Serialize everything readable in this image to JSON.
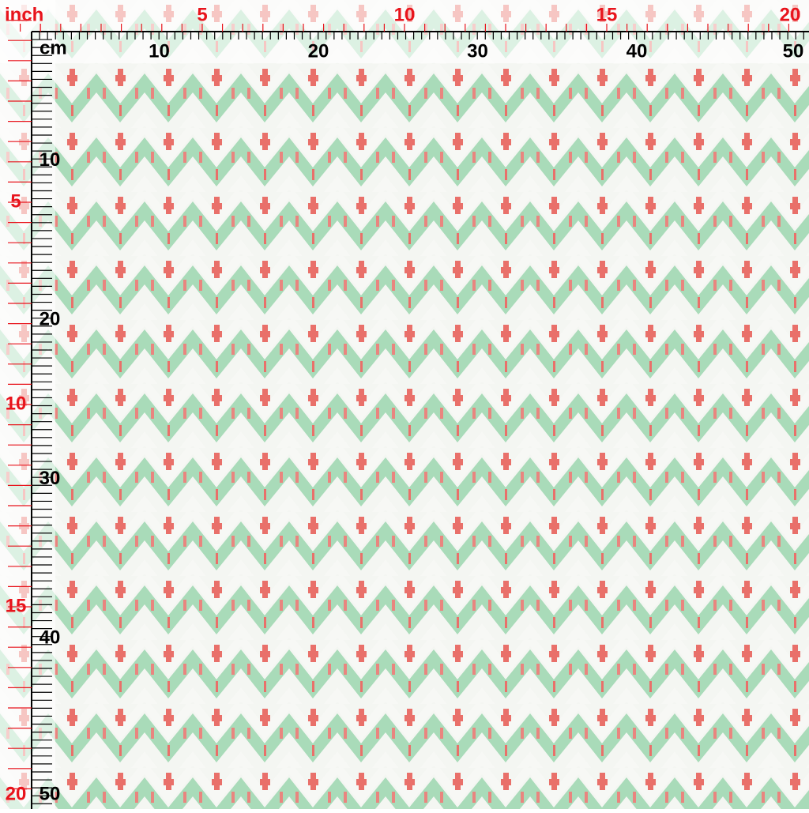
{
  "top_ruler": {
    "inch_unit": "inch",
    "inch_labels": [
      "5",
      "10",
      "15",
      "20"
    ],
    "cm_unit": "cm",
    "cm_labels": [
      "10",
      "20",
      "30",
      "40",
      "50"
    ]
  },
  "left_ruler": {
    "cm_labels": [
      "10",
      "20",
      "30",
      "40",
      "50"
    ],
    "inch_labels": [
      "5",
      "10",
      "15",
      "20"
    ]
  }
}
